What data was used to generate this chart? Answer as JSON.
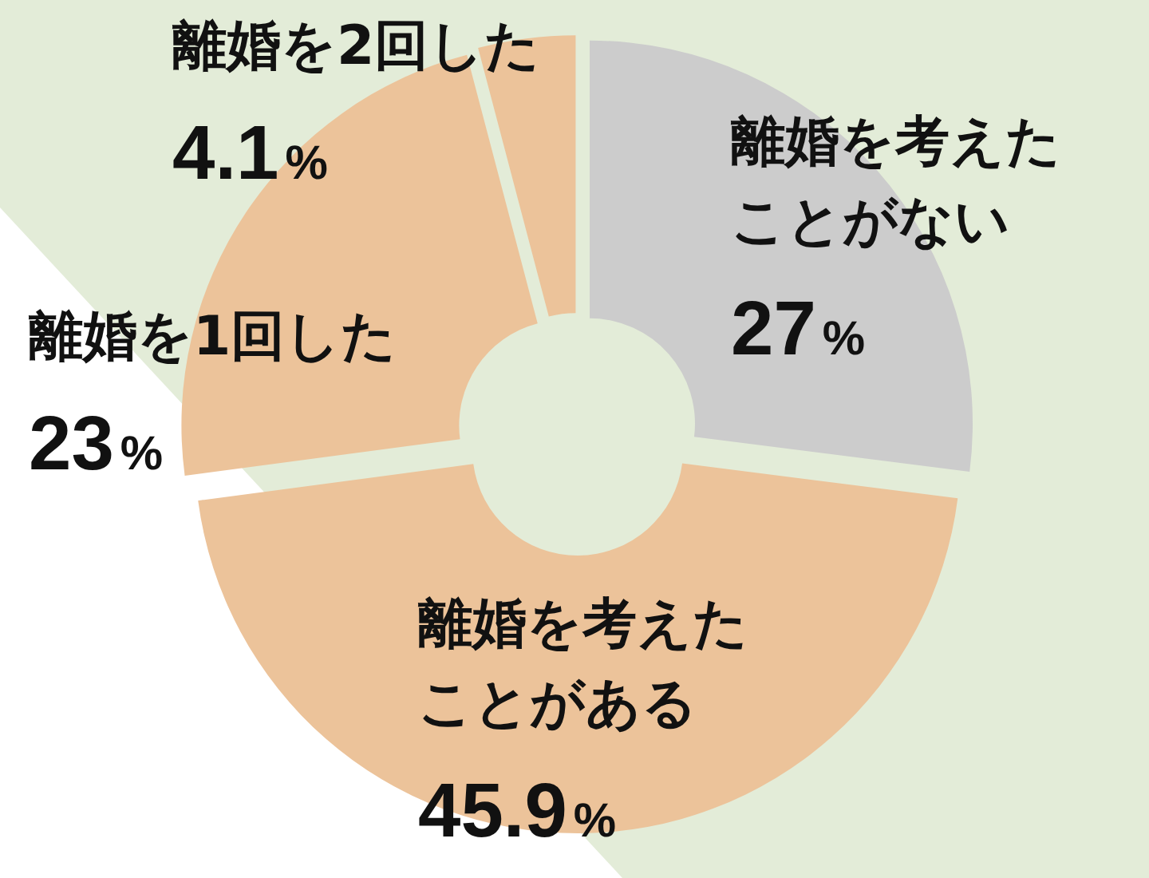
{
  "chart_data": {
    "type": "donut",
    "categories": [
      "離婚を考えたことがない",
      "離婚を考えたことがある",
      "離婚を1回した",
      "離婚を2回した"
    ],
    "values": [
      27,
      45.9,
      23,
      4.1
    ],
    "colors": [
      "#cccccc",
      "#ecc39a",
      "#ecc39a",
      "#ecc39a"
    ],
    "value_labels": [
      "27%",
      "45.9%",
      "23%",
      "4.1%"
    ]
  }
}
